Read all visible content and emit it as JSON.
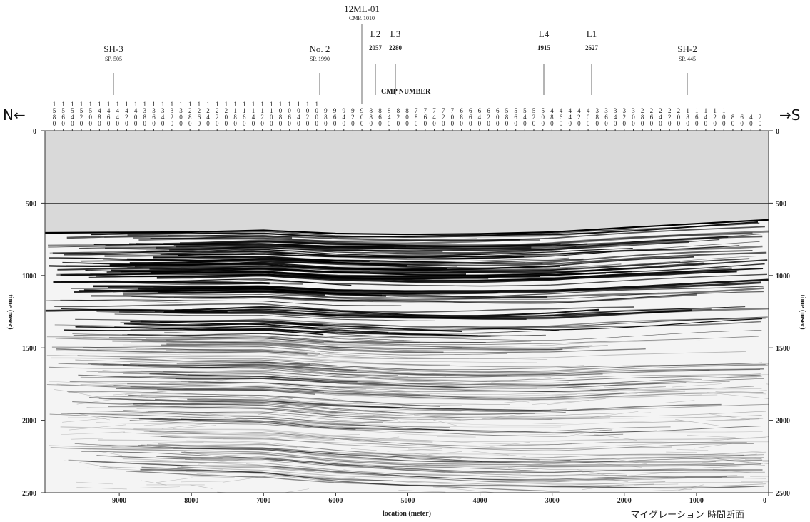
{
  "chart_data": {
    "type": "seismic-section",
    "x_label": "location (meter)",
    "y_label": "time (msec)",
    "xlim": [
      10030,
      0
    ],
    "xticks": [
      9000,
      8000,
      7000,
      6000,
      5000,
      4000,
      3000,
      2000,
      1000,
      0
    ],
    "ylim": [
      0,
      2500
    ],
    "yticks": [
      0,
      500,
      1000,
      1500,
      2000,
      2500
    ],
    "top_axis": {
      "label": "CMP NUMBER",
      "ticks": [
        1580,
        1560,
        1540,
        1520,
        1500,
        1480,
        1460,
        1440,
        1420,
        1400,
        1380,
        1360,
        1340,
        1320,
        1300,
        1280,
        1260,
        1240,
        1220,
        1200,
        1180,
        1160,
        1140,
        1120,
        1100,
        1080,
        1060,
        1040,
        1020,
        1000,
        980,
        960,
        940,
        920,
        900,
        880,
        860,
        840,
        820,
        800,
        780,
        760,
        740,
        720,
        700,
        680,
        660,
        640,
        620,
        600,
        580,
        560,
        540,
        520,
        500,
        480,
        460,
        440,
        420,
        400,
        380,
        360,
        340,
        320,
        300,
        280,
        260,
        240,
        220,
        200,
        180,
        160,
        140,
        120,
        100,
        80,
        60,
        40,
        20
      ]
    },
    "annotations": [
      {
        "label": "SH-3",
        "sub": "SP. 505"
      },
      {
        "label": "No. 2",
        "sub": "SP. 1990"
      },
      {
        "label": "12ML-01",
        "sub": "CMP. 1010"
      },
      {
        "label": "L2",
        "sub": "2057"
      },
      {
        "label": "L3",
        "sub": "2280"
      },
      {
        "label": "L4",
        "sub": "1915"
      },
      {
        "label": "L1",
        "sub": "2627"
      },
      {
        "label": "SH-2",
        "sub": "SP. 445"
      }
    ],
    "direction_left": "N←",
    "direction_right": "→S",
    "caption": "マイグレーション 時間断面"
  }
}
